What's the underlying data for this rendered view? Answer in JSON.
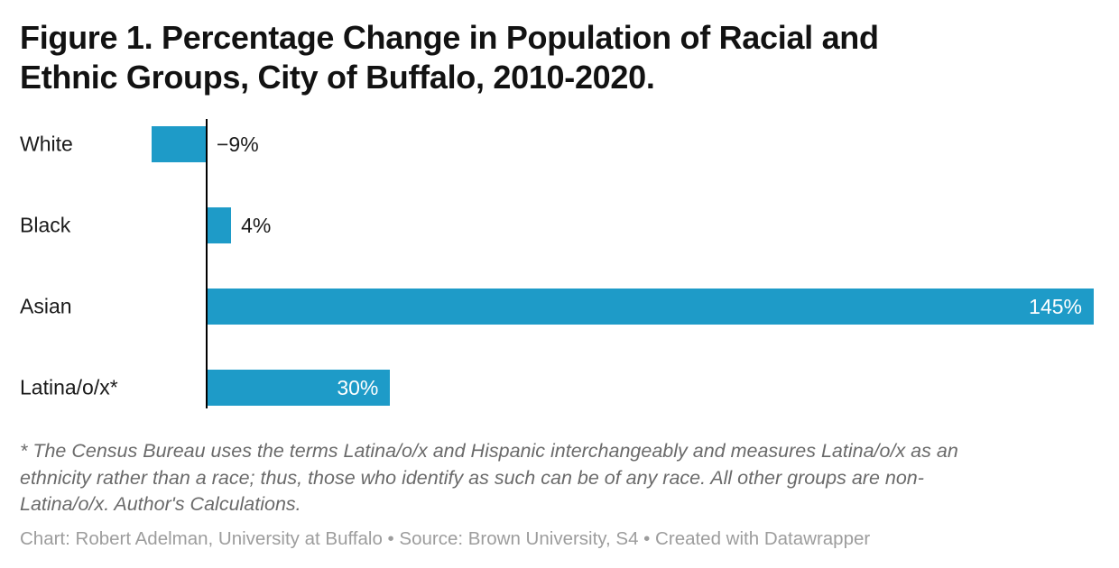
{
  "title_lines": [
    "Figure 1. Percentage Change in Population of Racial and",
    "Ethnic Groups, City of Buffalo, 2010-2020."
  ],
  "chart_data": {
    "type": "bar",
    "orientation": "horizontal",
    "title": "Figure 1. Percentage Change in Population of Racial and Ethnic Groups, City of Buffalo, 2010-2020.",
    "categories": [
      "White",
      "Black",
      "Asian",
      "Latina/o/x*"
    ],
    "values": [
      -9,
      4,
      145,
      30
    ],
    "value_labels": [
      "−9%",
      "4%",
      "145%",
      "30%"
    ],
    "value_label_positions": [
      "outside",
      "outside",
      "inside",
      "inside"
    ],
    "xlabel": "",
    "ylabel": "",
    "xlim": [
      -9,
      145
    ],
    "grid": false,
    "zero_baseline": true,
    "legend": "none"
  },
  "colors": {
    "background": "#ffffff",
    "bar": "#1e9bc8",
    "axis": "#000000",
    "title": "#121212",
    "category_label": "#1a1a1a",
    "value_outside": "#1a1a1a",
    "value_inside": "#ffffff",
    "footnote": "#6a6a6a",
    "credit": "#9d9d9d"
  },
  "footnote_lines": [
    "* The Census Bureau uses the terms Latina/o/x and Hispanic interchangeably and measures Latina/o/x as an",
    "ethnicity rather than a race; thus, those who identify as such can be of any race. All other groups are non-",
    "Latina/o/x. Author's Calculations."
  ],
  "credit": "Chart: Robert Adelman, University at Buffalo • Source: Brown University, S4 • Created with Datawrapper"
}
